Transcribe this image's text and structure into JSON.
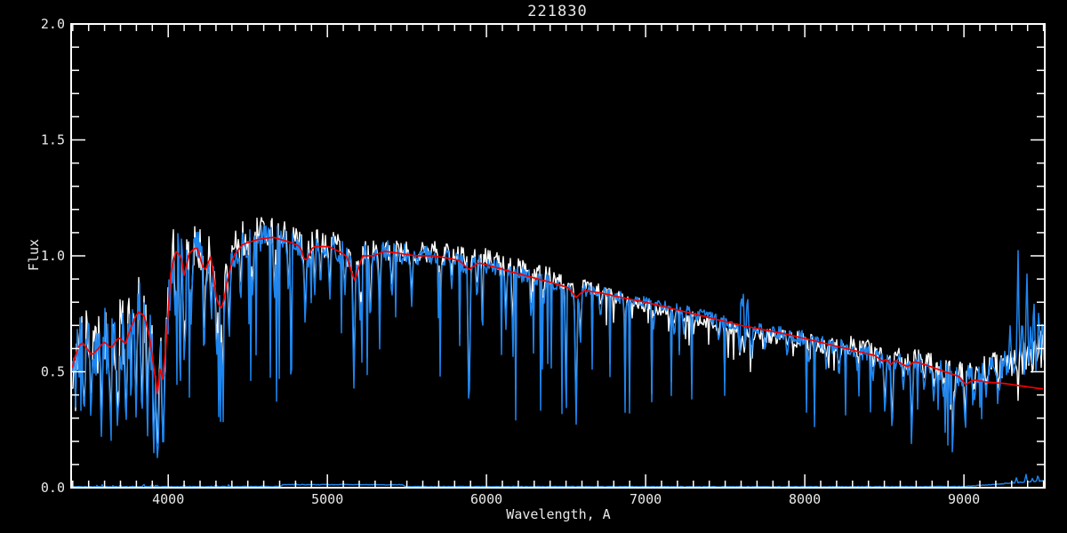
{
  "chart_data": {
    "type": "line",
    "title": "221830",
    "xlabel": "Wavelength, A",
    "ylabel": "Flux",
    "xlim": [
      3390,
      9508
    ],
    "ylim": [
      0.0,
      2.0
    ],
    "x_tick_values": [
      4000,
      5000,
      6000,
      7000,
      8000,
      9000
    ],
    "x_tick_labels": [
      "4000",
      "5000",
      "6000",
      "7000",
      "8000",
      "9000"
    ],
    "x_minor_step": 100,
    "y_tick_values": [
      0.0,
      0.5,
      1.0,
      1.5,
      2.0
    ],
    "y_tick_labels": [
      "0.0",
      "0.5",
      "1.0",
      "1.5",
      "2.0"
    ],
    "y_minor_step": 0.1,
    "grid": false,
    "legend": "none",
    "background": "#000000",
    "frame_color": "#ffffff",
    "text_color": "#e9e9e9",
    "series": [
      {
        "name": "observed-spectrum",
        "role": "observed",
        "color": "#ffffff"
      },
      {
        "name": "rebinned-spectrum",
        "role": "rebinned",
        "color": "#1e86f0"
      },
      {
        "name": "model-fit",
        "role": "fit",
        "color": "#f40000"
      },
      {
        "name": "error-spectrum",
        "role": "error",
        "color": "#1e86f0"
      }
    ],
    "fit_points": [
      [
        3390,
        0.5
      ],
      [
        3420,
        0.58
      ],
      [
        3455,
        0.63
      ],
      [
        3490,
        0.6
      ],
      [
        3520,
        0.57
      ],
      [
        3560,
        0.6
      ],
      [
        3600,
        0.63
      ],
      [
        3640,
        0.6
      ],
      [
        3690,
        0.65
      ],
      [
        3730,
        0.62
      ],
      [
        3770,
        0.7
      ],
      [
        3810,
        0.76
      ],
      [
        3850,
        0.74
      ],
      [
        3880,
        0.66
      ],
      [
        3910,
        0.52
      ],
      [
        3933,
        0.4
      ],
      [
        3950,
        0.52
      ],
      [
        3968,
        0.46
      ],
      [
        3990,
        0.65
      ],
      [
        4015,
        0.92
      ],
      [
        4045,
        1.02
      ],
      [
        4080,
        1.0
      ],
      [
        4101,
        0.91
      ],
      [
        4130,
        1.01
      ],
      [
        4180,
        1.04
      ],
      [
        4227,
        0.93
      ],
      [
        4270,
        1.0
      ],
      [
        4305,
        0.8
      ],
      [
        4340,
        0.77
      ],
      [
        4370,
        0.89
      ],
      [
        4410,
        1.0
      ],
      [
        4470,
        1.05
      ],
      [
        4560,
        1.07
      ],
      [
        4660,
        1.08
      ],
      [
        4760,
        1.06
      ],
      [
        4830,
        1.04
      ],
      [
        4861,
        0.97
      ],
      [
        4910,
        1.04
      ],
      [
        5010,
        1.04
      ],
      [
        5070,
        1.02
      ],
      [
        5120,
        1.0
      ],
      [
        5170,
        0.89
      ],
      [
        5220,
        1.0
      ],
      [
        5290,
        1.0
      ],
      [
        5360,
        1.02
      ],
      [
        5460,
        1.01
      ],
      [
        5560,
        1.0
      ],
      [
        5660,
        1.0
      ],
      [
        5760,
        0.99
      ],
      [
        5830,
        0.98
      ],
      [
        5890,
        0.94
      ],
      [
        5950,
        0.97
      ],
      [
        6060,
        0.95
      ],
      [
        6160,
        0.93
      ],
      [
        6270,
        0.91
      ],
      [
        6380,
        0.89
      ],
      [
        6480,
        0.87
      ],
      [
        6520,
        0.86
      ],
      [
        6563,
        0.82
      ],
      [
        6610,
        0.85
      ],
      [
        6720,
        0.84
      ],
      [
        6850,
        0.82
      ],
      [
        7000,
        0.8
      ],
      [
        7150,
        0.775
      ],
      [
        7300,
        0.75
      ],
      [
        7450,
        0.725
      ],
      [
        7600,
        0.7
      ],
      [
        7750,
        0.68
      ],
      [
        7900,
        0.66
      ],
      [
        8050,
        0.635
      ],
      [
        8200,
        0.61
      ],
      [
        8350,
        0.585
      ],
      [
        8440,
        0.57
      ],
      [
        8490,
        0.545
      ],
      [
        8515,
        0.555
      ],
      [
        8540,
        0.53
      ],
      [
        8565,
        0.55
      ],
      [
        8650,
        0.52
      ],
      [
        8685,
        0.545
      ],
      [
        8780,
        0.525
      ],
      [
        8880,
        0.5
      ],
      [
        8970,
        0.48
      ],
      [
        9010,
        0.445
      ],
      [
        9060,
        0.465
      ],
      [
        9150,
        0.455
      ],
      [
        9250,
        0.45
      ],
      [
        9350,
        0.44
      ],
      [
        9450,
        0.43
      ],
      [
        9508,
        0.425
      ]
    ],
    "blue_tail_points": [
      [
        9000,
        0.48
      ],
      [
        9060,
        0.49
      ],
      [
        9150,
        0.51
      ],
      [
        9250,
        0.53
      ],
      [
        9350,
        0.55
      ],
      [
        9450,
        0.58
      ],
      [
        9508,
        0.61
      ]
    ],
    "white_offset_points": [
      [
        3390,
        0.015
      ],
      [
        4500,
        0.03
      ],
      [
        5000,
        0.012
      ],
      [
        5600,
        0.015
      ],
      [
        5900,
        0.03
      ],
      [
        6300,
        0.035
      ],
      [
        6650,
        0.02
      ],
      [
        6900,
        -0.012
      ],
      [
        7300,
        -0.018
      ],
      [
        7800,
        -0.02
      ],
      [
        8150,
        -0.005
      ],
      [
        8300,
        0.02
      ],
      [
        8700,
        0.02
      ],
      [
        9000,
        0.012
      ],
      [
        9300,
        0.005
      ],
      [
        9500,
        0.0
      ]
    ],
    "noise_amp_points": [
      [
        3390,
        0.15
      ],
      [
        3900,
        0.14
      ],
      [
        3995,
        0.12
      ],
      [
        4050,
        0.095
      ],
      [
        4300,
        0.08
      ],
      [
        4600,
        0.065
      ],
      [
        5000,
        0.055
      ],
      [
        5500,
        0.045
      ],
      [
        5900,
        0.038
      ],
      [
        6500,
        0.03
      ],
      [
        7000,
        0.026
      ],
      [
        7600,
        0.03
      ],
      [
        8200,
        0.035
      ],
      [
        8700,
        0.042
      ],
      [
        9100,
        0.05
      ],
      [
        9300,
        0.065
      ],
      [
        9500,
        0.08
      ]
    ],
    "dip_prob_points": [
      [
        3390,
        0.1
      ],
      [
        3995,
        0.1
      ],
      [
        4010,
        0.07
      ],
      [
        5600,
        0.05
      ],
      [
        5900,
        0.035
      ],
      [
        6600,
        0.03
      ],
      [
        7500,
        0.035
      ],
      [
        8300,
        0.045
      ],
      [
        9000,
        0.05
      ],
      [
        9500,
        0.05
      ]
    ],
    "absorption_lines": [
      [
        3470,
        0.3
      ],
      [
        3515,
        0.28
      ],
      [
        3580,
        0.22
      ],
      [
        3635,
        0.3
      ],
      [
        3680,
        0.25
      ],
      [
        3735,
        0.24
      ],
      [
        3798,
        0.3
      ],
      [
        3835,
        0.28
      ],
      [
        3870,
        0.2
      ],
      [
        3910,
        0.14
      ],
      [
        3933,
        0.1
      ],
      [
        3968,
        0.13
      ],
      [
        4045,
        0.72
      ],
      [
        4101,
        0.5
      ],
      [
        4144,
        0.7
      ],
      [
        4227,
        0.6
      ],
      [
        4271,
        0.68
      ],
      [
        4305,
        0.55
      ],
      [
        4340,
        0.52
      ],
      [
        4383,
        0.62
      ],
      [
        4455,
        0.78
      ],
      [
        4531,
        0.8
      ],
      [
        4668,
        0.78
      ],
      [
        4755,
        0.82
      ],
      [
        4861,
        0.68
      ],
      [
        4920,
        0.82
      ],
      [
        4957,
        0.85
      ],
      [
        5015,
        0.8
      ],
      [
        5110,
        0.82
      ],
      [
        5167,
        0.42
      ],
      [
        5207,
        0.7
      ],
      [
        5270,
        0.68
      ],
      [
        5328,
        0.75
      ],
      [
        5405,
        0.8
      ],
      [
        5530,
        0.78
      ],
      [
        5711,
        0.82
      ],
      [
        5782,
        0.85
      ],
      [
        5890,
        0.24
      ],
      [
        5940,
        0.8
      ],
      [
        6122,
        0.68
      ],
      [
        6162,
        0.72
      ],
      [
        6280,
        0.72
      ],
      [
        6360,
        0.78
      ],
      [
        6495,
        0.72
      ],
      [
        6563,
        0.25
      ],
      [
        6590,
        0.6
      ],
      [
        6717,
        0.72
      ],
      [
        6870,
        0.65
      ],
      [
        7050,
        0.68
      ],
      [
        7180,
        0.64
      ],
      [
        7240,
        0.66
      ],
      [
        7460,
        0.62
      ],
      [
        7593,
        0.5
      ],
      [
        7620,
        0.52
      ],
      [
        7665,
        0.55
      ],
      [
        7750,
        0.58
      ],
      [
        7890,
        0.56
      ],
      [
        8025,
        0.52
      ],
      [
        8135,
        0.5
      ],
      [
        8215,
        0.46
      ],
      [
        8330,
        0.5
      ],
      [
        8430,
        0.46
      ],
      [
        8504,
        0.3
      ],
      [
        8549,
        0.21
      ],
      [
        8620,
        0.42
      ],
      [
        8672,
        0.2
      ],
      [
        8750,
        0.4
      ],
      [
        8811,
        0.36
      ],
      [
        8870,
        0.38
      ],
      [
        8940,
        0.34
      ],
      [
        9005,
        0.3
      ],
      [
        9065,
        0.36
      ],
      [
        9140,
        0.38
      ],
      [
        9220,
        0.4
      ]
    ],
    "emission_spikes": [
      [
        7600,
        0.88
      ],
      [
        7615,
        0.86
      ],
      [
        7640,
        0.84
      ],
      [
        9290,
        0.7
      ],
      [
        9340,
        1.05
      ],
      [
        9365,
        0.75
      ],
      [
        9395,
        0.97
      ],
      [
        9420,
        0.72
      ],
      [
        9440,
        0.82
      ],
      [
        9470,
        0.78
      ],
      [
        9490,
        0.72
      ]
    ],
    "bottom_profile_points": [
      [
        3390,
        0.004
      ],
      [
        4700,
        0.005
      ],
      [
        4720,
        0.013
      ],
      [
        5470,
        0.013
      ],
      [
        5495,
        0.005
      ],
      [
        8000,
        0.004
      ],
      [
        9000,
        0.005
      ],
      [
        9150,
        0.012
      ],
      [
        9300,
        0.02
      ],
      [
        9400,
        0.025
      ],
      [
        9500,
        0.03
      ]
    ],
    "bottom_spikes": [
      [
        3700,
        0.012
      ],
      [
        3900,
        0.015
      ],
      [
        4100,
        0.012
      ],
      [
        4300,
        0.014
      ],
      [
        4800,
        0.02
      ],
      [
        5100,
        0.018
      ],
      [
        9330,
        0.045
      ],
      [
        9390,
        0.06
      ],
      [
        9430,
        0.04
      ],
      [
        9465,
        0.055
      ]
    ]
  }
}
